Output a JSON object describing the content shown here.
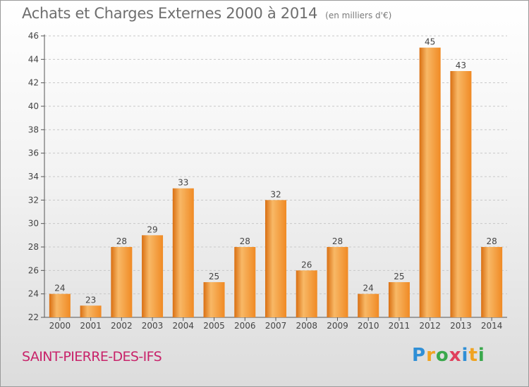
{
  "title": "Achats et Charges Externes 2000 à 2014",
  "subtitle": "(en milliers d'€)",
  "commune": "SAINT-PIERRE-DES-IFS",
  "logo": {
    "letters": [
      "P",
      "r",
      "o",
      "x",
      "i",
      "t",
      "i"
    ],
    "colors": [
      "#2f8fd6",
      "#f0a321",
      "#3aa84c",
      "#e0405c",
      "#2f8fd6",
      "#f0a321",
      "#3aa84c"
    ]
  },
  "colors": {
    "bar": "#f08a24",
    "bar_light": "#f8b866",
    "bar_dark": "#d96f12",
    "axis": "#555555",
    "grid": "#c8c8c8"
  },
  "chart_data": {
    "type": "bar",
    "categories": [
      "2000",
      "2001",
      "2002",
      "2003",
      "2004",
      "2005",
      "2006",
      "2007",
      "2008",
      "2009",
      "2010",
      "2011",
      "2012",
      "2013",
      "2014"
    ],
    "values": [
      24,
      23,
      28,
      29,
      33,
      25,
      28,
      32,
      26,
      28,
      24,
      25,
      45,
      43,
      28
    ],
    "yticks": [
      22,
      24,
      26,
      28,
      30,
      32,
      34,
      36,
      38,
      40,
      42,
      44,
      46
    ],
    "ylim": [
      22,
      46
    ],
    "grid": true
  }
}
